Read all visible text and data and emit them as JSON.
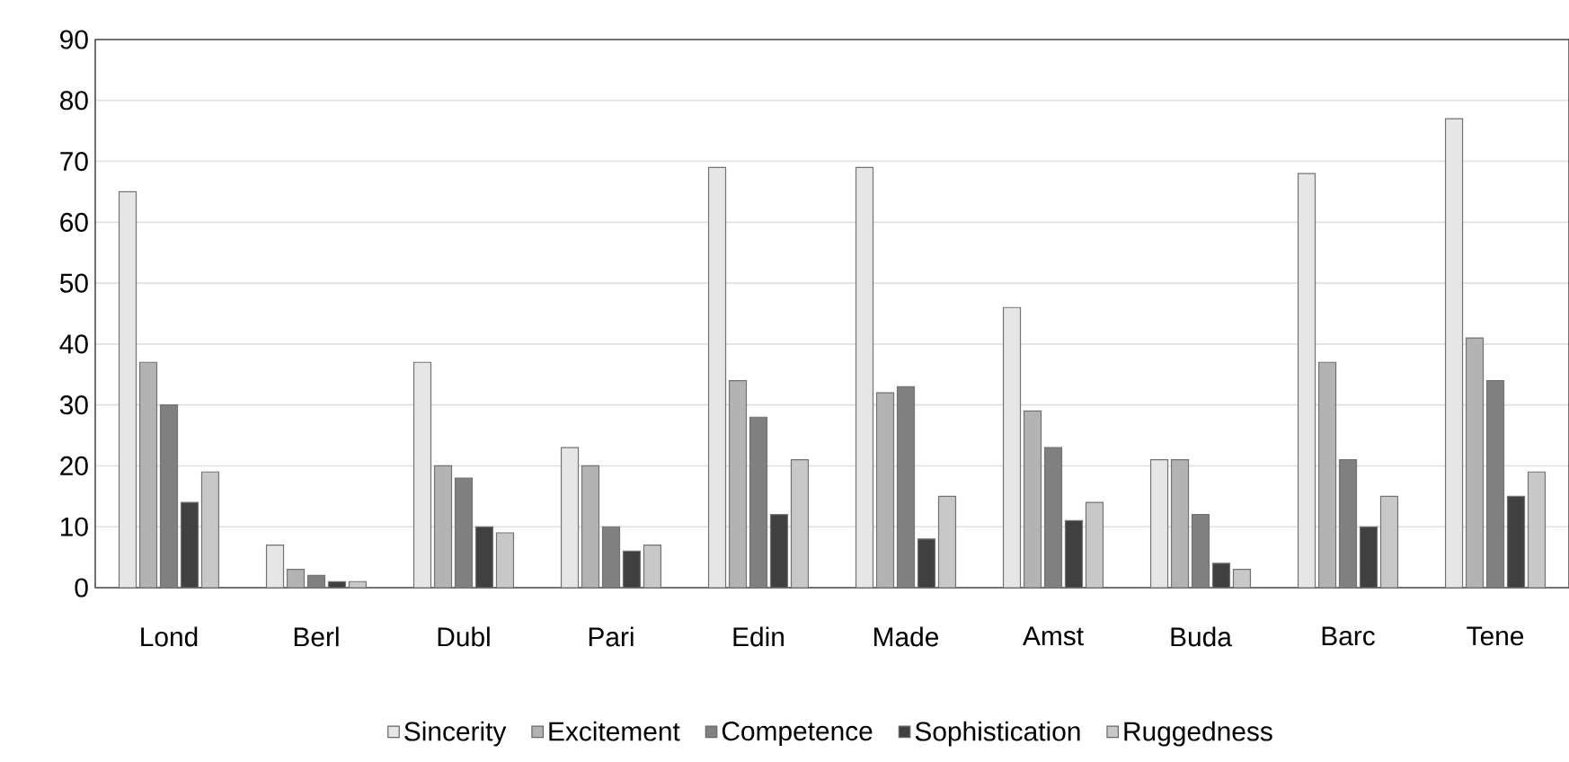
{
  "chart_data": {
    "type": "bar",
    "categories": [
      "Lond",
      "Berl",
      "Dubl",
      "Pari",
      "Edin",
      "Made",
      "Amst",
      "Buda",
      "Barc",
      "Tene"
    ],
    "series": [
      {
        "name": "Sincerity",
        "color": "#e6e6e6",
        "values": [
          65,
          7,
          37,
          23,
          69,
          69,
          46,
          21,
          68,
          77
        ]
      },
      {
        "name": "Excitement",
        "color": "#b3b3b3",
        "values": [
          37,
          3,
          20,
          20,
          34,
          32,
          29,
          21,
          37,
          41
        ]
      },
      {
        "name": "Competence",
        "color": "#808080",
        "values": [
          30,
          2,
          18,
          10,
          28,
          33,
          23,
          12,
          21,
          34
        ]
      },
      {
        "name": "Sophistication",
        "color": "#404040",
        "values": [
          14,
          1,
          10,
          6,
          12,
          8,
          11,
          4,
          10,
          15
        ]
      },
      {
        "name": "Ruggedness",
        "color": "#c8c8c8",
        "values": [
          19,
          1,
          9,
          7,
          21,
          15,
          14,
          3,
          15,
          19
        ]
      }
    ],
    "ylim": [
      0,
      90
    ],
    "yticks": [
      0,
      10,
      20,
      30,
      40,
      50,
      60,
      70,
      80,
      90
    ],
    "grid": "y",
    "legend": "bottom"
  }
}
